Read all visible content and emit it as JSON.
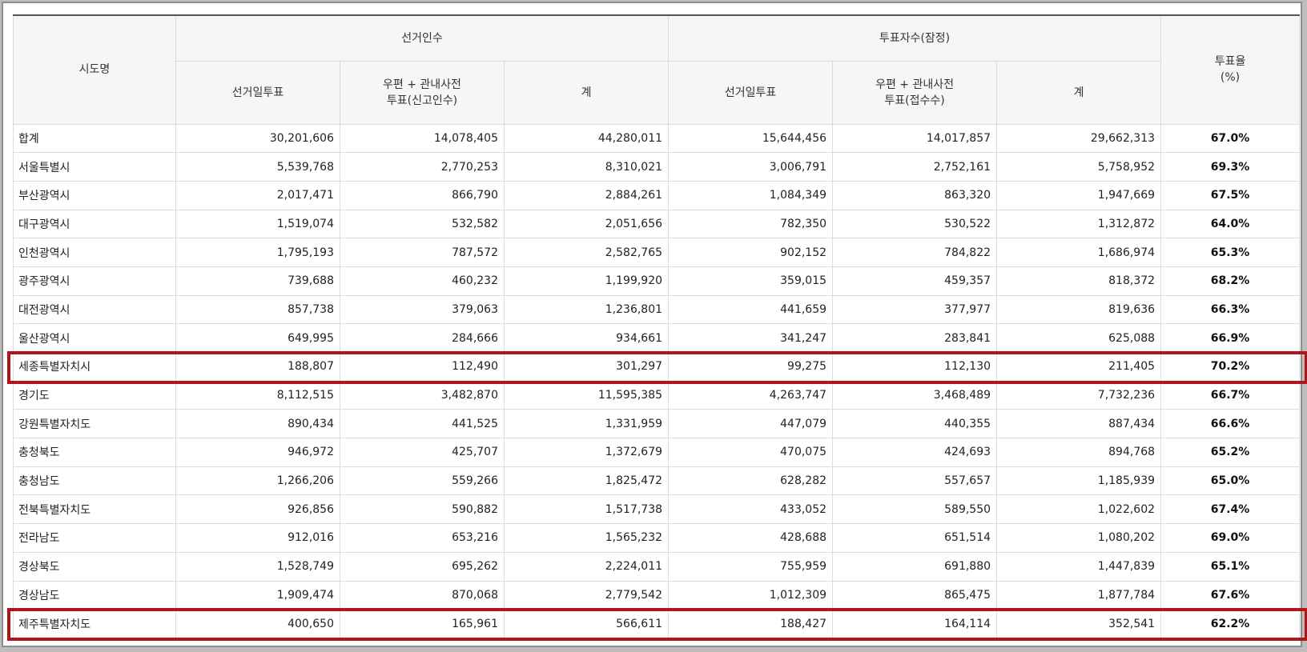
{
  "header": {
    "region": "시도명",
    "electorate_group": "선거인수",
    "turnout_group": "투표자수(잠정)",
    "rate_line1": "투표율",
    "rate_line2": "(%)",
    "electorate_cols": [
      {
        "line1": "선거일투표",
        "line2": ""
      },
      {
        "line1": "우편 + 관내사전",
        "line2": "투표(신고인수)"
      },
      {
        "line1": "계",
        "line2": ""
      }
    ],
    "turnout_cols": [
      {
        "line1": "선거일투표",
        "line2": ""
      },
      {
        "line1": "우편 + 관내사전",
        "line2": "투표(접수수)"
      },
      {
        "line1": "계",
        "line2": ""
      }
    ]
  },
  "rows": [
    {
      "name": "합계",
      "values": [
        "30,201,606",
        "14,078,405",
        "44,280,011",
        "15,644,456",
        "14,017,857",
        "29,662,313"
      ],
      "rate": "67.0%",
      "highlighted": false
    },
    {
      "name": "서울특별시",
      "values": [
        "5,539,768",
        "2,770,253",
        "8,310,021",
        "3,006,791",
        "2,752,161",
        "5,758,952"
      ],
      "rate": "69.3%",
      "highlighted": false
    },
    {
      "name": "부산광역시",
      "values": [
        "2,017,471",
        "866,790",
        "2,884,261",
        "1,084,349",
        "863,320",
        "1,947,669"
      ],
      "rate": "67.5%",
      "highlighted": false
    },
    {
      "name": "대구광역시",
      "values": [
        "1,519,074",
        "532,582",
        "2,051,656",
        "782,350",
        "530,522",
        "1,312,872"
      ],
      "rate": "64.0%",
      "highlighted": false
    },
    {
      "name": "인천광역시",
      "values": [
        "1,795,193",
        "787,572",
        "2,582,765",
        "902,152",
        "784,822",
        "1,686,974"
      ],
      "rate": "65.3%",
      "highlighted": false
    },
    {
      "name": "광주광역시",
      "values": [
        "739,688",
        "460,232",
        "1,199,920",
        "359,015",
        "459,357",
        "818,372"
      ],
      "rate": "68.2%",
      "highlighted": false
    },
    {
      "name": "대전광역시",
      "values": [
        "857,738",
        "379,063",
        "1,236,801",
        "441,659",
        "377,977",
        "819,636"
      ],
      "rate": "66.3%",
      "highlighted": false
    },
    {
      "name": "울산광역시",
      "values": [
        "649,995",
        "284,666",
        "934,661",
        "341,247",
        "283,841",
        "625,088"
      ],
      "rate": "66.9%",
      "highlighted": false
    },
    {
      "name": "세종특별자치시",
      "values": [
        "188,807",
        "112,490",
        "301,297",
        "99,275",
        "112,130",
        "211,405"
      ],
      "rate": "70.2%",
      "highlighted": true
    },
    {
      "name": "경기도",
      "values": [
        "8,112,515",
        "3,482,870",
        "11,595,385",
        "4,263,747",
        "3,468,489",
        "7,732,236"
      ],
      "rate": "66.7%",
      "highlighted": false
    },
    {
      "name": "강원특별자치도",
      "values": [
        "890,434",
        "441,525",
        "1,331,959",
        "447,079",
        "440,355",
        "887,434"
      ],
      "rate": "66.6%",
      "highlighted": false
    },
    {
      "name": "충청북도",
      "values": [
        "946,972",
        "425,707",
        "1,372,679",
        "470,075",
        "424,693",
        "894,768"
      ],
      "rate": "65.2%",
      "highlighted": false
    },
    {
      "name": "충청남도",
      "values": [
        "1,266,206",
        "559,266",
        "1,825,472",
        "628,282",
        "557,657",
        "1,185,939"
      ],
      "rate": "65.0%",
      "highlighted": false
    },
    {
      "name": "전북특별자치도",
      "values": [
        "926,856",
        "590,882",
        "1,517,738",
        "433,052",
        "589,550",
        "1,022,602"
      ],
      "rate": "67.4%",
      "highlighted": false
    },
    {
      "name": "전라남도",
      "values": [
        "912,016",
        "653,216",
        "1,565,232",
        "428,688",
        "651,514",
        "1,080,202"
      ],
      "rate": "69.0%",
      "highlighted": false
    },
    {
      "name": "경상북도",
      "values": [
        "1,528,749",
        "695,262",
        "2,224,011",
        "755,959",
        "691,880",
        "1,447,839"
      ],
      "rate": "65.1%",
      "highlighted": false
    },
    {
      "name": "경상남도",
      "values": [
        "1,909,474",
        "870,068",
        "2,779,542",
        "1,012,309",
        "865,475",
        "1,877,784"
      ],
      "rate": "67.6%",
      "highlighted": false
    },
    {
      "name": "제주특별자치도",
      "values": [
        "400,650",
        "165,961",
        "566,611",
        "188,427",
        "164,114",
        "352,541"
      ],
      "rate": "62.2%",
      "highlighted": true
    }
  ],
  "colors": {
    "highlight_border": "#b0151c",
    "header_background": "#f6f6f6",
    "grid_line": "#dcdcdc"
  }
}
